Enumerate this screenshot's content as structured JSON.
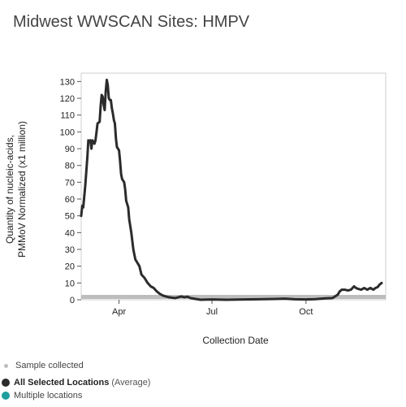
{
  "title": "Midwest WWSCAN Sites: HMPV",
  "chart_data": {
    "type": "line",
    "ylabel_line1": "Quantity of nucleic-acids,",
    "ylabel_line2": "PMMoV Normalized (x1 million)",
    "xlabel": "Collection Date",
    "ylim": [
      0,
      135
    ],
    "yticks": [
      0,
      10,
      20,
      30,
      40,
      50,
      60,
      70,
      80,
      90,
      100,
      110,
      120,
      130
    ],
    "x_unit": "date",
    "x_start": "2024-02-24",
    "x_end": "2024-12-18",
    "xticks": [
      {
        "label": "Apr",
        "date": "2024-04-01"
      },
      {
        "label": "Jul",
        "date": "2024-07-01"
      },
      {
        "label": "Oct",
        "date": "2024-10-01"
      }
    ],
    "series": [
      {
        "name": "All Selected Locations",
        "color": "#2b2b2b",
        "points": [
          [
            "2024-02-24",
            50
          ],
          [
            "2024-02-25",
            56
          ],
          [
            "2024-02-26",
            55
          ],
          [
            "2024-02-28",
            68
          ],
          [
            "2024-03-01",
            85
          ],
          [
            "2024-03-02",
            95
          ],
          [
            "2024-03-03",
            94
          ],
          [
            "2024-03-04",
            95
          ],
          [
            "2024-03-05",
            90
          ],
          [
            "2024-03-06",
            95
          ],
          [
            "2024-03-08",
            93
          ],
          [
            "2024-03-09",
            95
          ],
          [
            "2024-03-10",
            100
          ],
          [
            "2024-03-11",
            105
          ],
          [
            "2024-03-13",
            106
          ],
          [
            "2024-03-14",
            115
          ],
          [
            "2024-03-15",
            122
          ],
          [
            "2024-03-16",
            121
          ],
          [
            "2024-03-17",
            116
          ],
          [
            "2024-03-18",
            113
          ],
          [
            "2024-03-19",
            124
          ],
          [
            "2024-03-20",
            131
          ],
          [
            "2024-03-21",
            128
          ],
          [
            "2024-03-22",
            120
          ],
          [
            "2024-03-23",
            119
          ],
          [
            "2024-03-24",
            119
          ],
          [
            "2024-03-25",
            114
          ],
          [
            "2024-03-26",
            111
          ],
          [
            "2024-03-27",
            107
          ],
          [
            "2024-03-28",
            105
          ],
          [
            "2024-03-29",
            96
          ],
          [
            "2024-03-30",
            91
          ],
          [
            "2024-04-01",
            89
          ],
          [
            "2024-04-02",
            83
          ],
          [
            "2024-04-03",
            75
          ],
          [
            "2024-04-04",
            72
          ],
          [
            "2024-04-05",
            71
          ],
          [
            "2024-04-06",
            70
          ],
          [
            "2024-04-07",
            66
          ],
          [
            "2024-04-08",
            59
          ],
          [
            "2024-04-10",
            55
          ],
          [
            "2024-04-11",
            48
          ],
          [
            "2024-04-13",
            40
          ],
          [
            "2024-04-15",
            30
          ],
          [
            "2024-04-17",
            24
          ],
          [
            "2024-04-19",
            22
          ],
          [
            "2024-04-21",
            20
          ],
          [
            "2024-04-23",
            15
          ],
          [
            "2024-04-26",
            13
          ],
          [
            "2024-04-29",
            10
          ],
          [
            "2024-05-02",
            8
          ],
          [
            "2024-05-05",
            7
          ],
          [
            "2024-05-08",
            5
          ],
          [
            "2024-05-11",
            3.5
          ],
          [
            "2024-05-14",
            2.5
          ],
          [
            "2024-05-17",
            2
          ],
          [
            "2024-05-20",
            1.5
          ],
          [
            "2024-05-23",
            1.2
          ],
          [
            "2024-05-26",
            1
          ],
          [
            "2024-05-29",
            1.5
          ],
          [
            "2024-06-01",
            2
          ],
          [
            "2024-06-04",
            1.5
          ],
          [
            "2024-06-07",
            1.8
          ],
          [
            "2024-06-10",
            1
          ],
          [
            "2024-06-15",
            0.5
          ],
          [
            "2024-06-20",
            0
          ],
          [
            "2024-07-01",
            0.2
          ],
          [
            "2024-07-15",
            0
          ],
          [
            "2024-08-01",
            0.2
          ],
          [
            "2024-08-15",
            0.3
          ],
          [
            "2024-09-01",
            0.5
          ],
          [
            "2024-09-10",
            0.7
          ],
          [
            "2024-09-20",
            0.3
          ],
          [
            "2024-10-01",
            0.2
          ],
          [
            "2024-10-10",
            0.4
          ],
          [
            "2024-10-20",
            0.8
          ],
          [
            "2024-10-27",
            1
          ],
          [
            "2024-11-01",
            3
          ],
          [
            "2024-11-03",
            5
          ],
          [
            "2024-11-05",
            6
          ],
          [
            "2024-11-08",
            6
          ],
          [
            "2024-11-11",
            5.5
          ],
          [
            "2024-11-14",
            6
          ],
          [
            "2024-11-17",
            8
          ],
          [
            "2024-11-19",
            7
          ],
          [
            "2024-11-21",
            6.5
          ],
          [
            "2024-11-24",
            6
          ],
          [
            "2024-11-27",
            7
          ],
          [
            "2024-11-30",
            6
          ],
          [
            "2024-12-03",
            7
          ],
          [
            "2024-12-06",
            6
          ],
          [
            "2024-12-08",
            7
          ],
          [
            "2024-12-10",
            7.5
          ],
          [
            "2024-12-12",
            9
          ],
          [
            "2024-12-14",
            10
          ]
        ]
      }
    ],
    "samples_band": {
      "color": "#bdbdbd"
    },
    "grid": false
  },
  "legend": {
    "sample_label": "Sample collected",
    "sample_color": "#bdbdbd",
    "avg_label": "All Selected Locations",
    "avg_suffix": "(Average)",
    "avg_color": "#2b2b2b",
    "multi_label": "Multiple locations",
    "multi_color": "#1f9e9e"
  }
}
